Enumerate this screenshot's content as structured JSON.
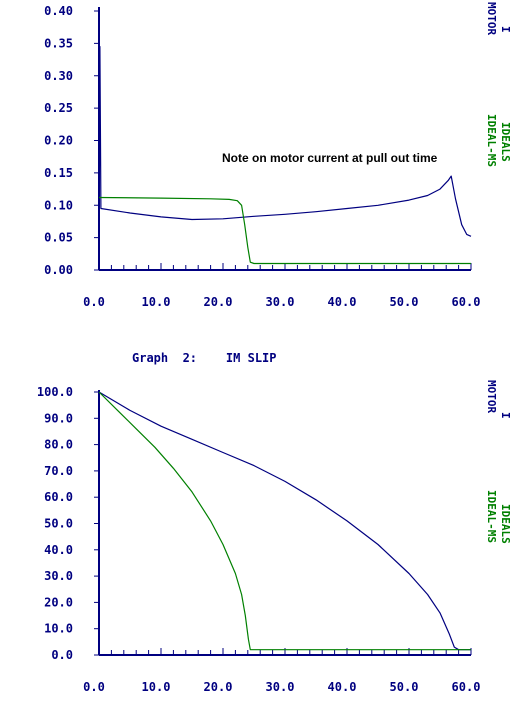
{
  "colors": {
    "axis": "#000080",
    "motor": "#000080",
    "ideal": "#008000",
    "annotation": "#000000",
    "background": "#ffffff"
  },
  "chart_data": [
    {
      "type": "line",
      "title": "",
      "xlabel": "",
      "ylabel": "",
      "xlim": [
        0,
        60
      ],
      "ylim": [
        0,
        0.4
      ],
      "x_ticks": [
        "0.0",
        "10.0",
        "20.0",
        "30.0",
        "40.0",
        "50.0",
        "60.0"
      ],
      "y_ticks": [
        "0.40",
        "0.35",
        "0.30",
        "0.25",
        "0.20",
        "0.15",
        "0.10",
        "0.05",
        "0.00"
      ],
      "legend": [
        {
          "lines": [
            "MOTOR",
            "I"
          ],
          "color": "#000080"
        },
        {
          "lines": [
            "IDEAL-MS",
            "IDEALS"
          ],
          "color": "#008000"
        }
      ],
      "annotation": "Note on motor current at pull out time",
      "series": [
        {
          "color": "#000080",
          "points": [
            [
              0,
              0.0
            ],
            [
              0.15,
              0.345
            ],
            [
              0.3,
              0.095
            ],
            [
              5,
              0.088
            ],
            [
              10,
              0.082
            ],
            [
              15,
              0.078
            ],
            [
              20,
              0.079
            ],
            [
              25,
              0.083
            ],
            [
              30,
              0.086
            ],
            [
              35,
              0.09
            ],
            [
              40,
              0.095
            ],
            [
              45,
              0.1
            ],
            [
              50,
              0.108
            ],
            [
              53,
              0.115
            ],
            [
              55,
              0.125
            ],
            [
              56.3,
              0.138
            ],
            [
              56.8,
              0.145
            ],
            [
              57.5,
              0.11
            ],
            [
              58.5,
              0.07
            ],
            [
              59.3,
              0.055
            ],
            [
              60,
              0.052
            ]
          ]
        },
        {
          "color": "#008000",
          "points": [
            [
              0,
              0.112
            ],
            [
              10,
              0.111
            ],
            [
              18,
              0.11
            ],
            [
              21,
              0.109
            ],
            [
              22.3,
              0.107
            ],
            [
              23,
              0.1
            ],
            [
              23.5,
              0.07
            ],
            [
              24,
              0.035
            ],
            [
              24.4,
              0.012
            ],
            [
              25,
              0.01
            ],
            [
              60,
              0.01
            ]
          ]
        }
      ]
    },
    {
      "type": "line",
      "title": "Graph  2:    IM SLIP",
      "xlabel": "",
      "ylabel": "",
      "xlim": [
        0,
        60
      ],
      "ylim": [
        0,
        100
      ],
      "x_ticks": [
        "0.0",
        "10.0",
        "20.0",
        "30.0",
        "40.0",
        "50.0",
        "60.0"
      ],
      "y_ticks": [
        "100.0",
        "90.0",
        "80.0",
        "70.0",
        "60.0",
        "50.0",
        "40.0",
        "30.0",
        "20.0",
        "10.0",
        "0.0"
      ],
      "legend": [
        {
          "lines": [
            "MOTOR",
            "I"
          ],
          "color": "#000080"
        },
        {
          "lines": [
            "IDEAL-MS",
            "IDEALS"
          ],
          "color": "#008000"
        }
      ],
      "series": [
        {
          "color": "#000080",
          "points": [
            [
              0,
              100
            ],
            [
              5,
              93
            ],
            [
              10,
              87
            ],
            [
              15,
              82
            ],
            [
              20,
              77
            ],
            [
              25,
              72
            ],
            [
              30,
              66
            ],
            [
              35,
              59
            ],
            [
              40,
              51
            ],
            [
              45,
              42
            ],
            [
              50,
              31
            ],
            [
              53,
              23
            ],
            [
              55,
              16
            ],
            [
              56.5,
              8
            ],
            [
              57.3,
              3
            ],
            [
              58,
              2
            ],
            [
              60,
              2
            ]
          ]
        },
        {
          "color": "#008000",
          "points": [
            [
              0,
              100
            ],
            [
              3,
              93
            ],
            [
              6,
              86
            ],
            [
              9,
              79
            ],
            [
              12,
              71
            ],
            [
              15,
              62
            ],
            [
              18,
              51
            ],
            [
              20,
              42
            ],
            [
              22,
              31
            ],
            [
              23,
              23
            ],
            [
              23.6,
              15
            ],
            [
              24.1,
              6
            ],
            [
              24.4,
              2
            ],
            [
              25,
              2
            ],
            [
              60,
              2
            ]
          ]
        }
      ]
    }
  ]
}
